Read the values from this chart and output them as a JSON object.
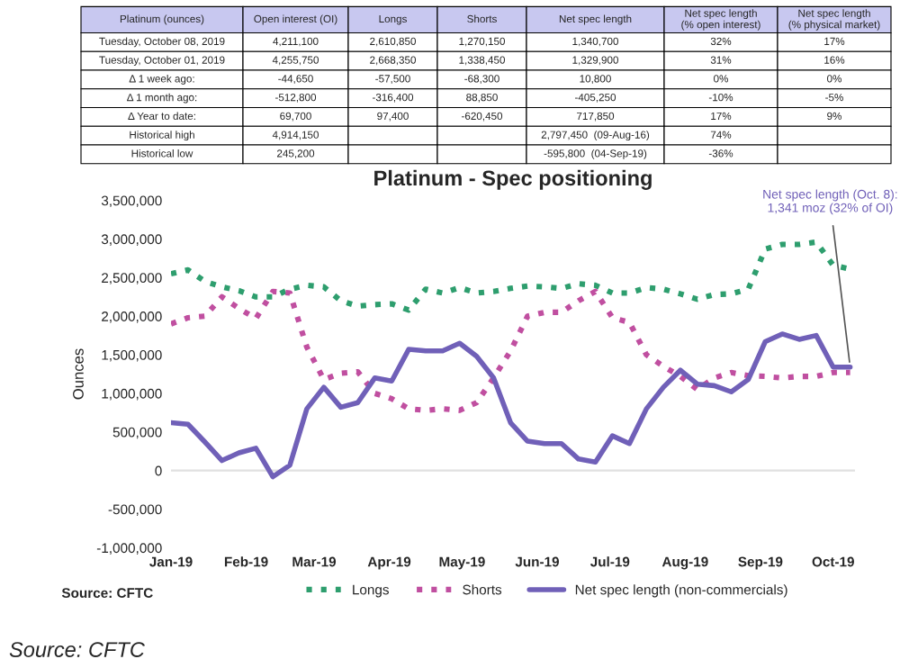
{
  "chart_data": [
    {
      "type": "other",
      "categories": [
        "Platinum (ounces)",
        "Open interest (OI)",
        "Longs",
        "Shorts",
        "Net spec length",
        "Net spec length\n(% open interest)",
        "Net spec length\n(% physical market)"
      ],
      "cell_labels": [
        [
          "Tuesday, October 08, 2019",
          "4,211,100",
          "2,610,850",
          "1,270,150",
          "1,340,700",
          "32%",
          "17%"
        ],
        [
          "Tuesday, October 01, 2019",
          "4,255,750",
          "2,668,350",
          "1,338,450",
          "1,329,900",
          "31%",
          "16%"
        ],
        [
          "Δ 1 week ago:",
          "-44,650",
          "-57,500",
          "-68,300",
          "10,800",
          "0%",
          "0%"
        ],
        [
          "Δ 1 month ago:",
          "-512,800",
          "-316,400",
          "88,850",
          "-405,250",
          "-10%",
          "-5%"
        ],
        [
          "Δ Year to date:",
          "69,700",
          "97,400",
          "-620,450",
          "717,850",
          "17%",
          "9%"
        ],
        [
          "Historical high",
          "4,914,150",
          null,
          null,
          "2,797,450  (09-Aug-16)",
          "74%",
          null
        ],
        [
          "Historical low",
          "245,200",
          null,
          null,
          "-595,800  (04-Sep-19)",
          "-36%",
          null
        ]
      ]
    },
    {
      "type": "line",
      "title": "Platinum - Spec positioning",
      "ylabel": "Ounces",
      "x": [
        "2019-01-01",
        "2019-01-08",
        "2019-01-15",
        "2019-01-22",
        "2019-01-29",
        "2019-02-05",
        "2019-02-12",
        "2019-02-19",
        "2019-02-26",
        "2019-03-05",
        "2019-03-12",
        "2019-03-19",
        "2019-03-26",
        "2019-04-02",
        "2019-04-09",
        "2019-04-16",
        "2019-04-23",
        "2019-04-30",
        "2019-05-07",
        "2019-05-14",
        "2019-05-21",
        "2019-05-28",
        "2019-06-04",
        "2019-06-11",
        "2019-06-18",
        "2019-06-25",
        "2019-07-02",
        "2019-07-09",
        "2019-07-16",
        "2019-07-23",
        "2019-07-30",
        "2019-08-06",
        "2019-08-13",
        "2019-08-20",
        "2019-08-27",
        "2019-09-03",
        "2019-09-10",
        "2019-09-17",
        "2019-09-24",
        "2019-10-01",
        "2019-10-08"
      ],
      "series": [
        {
          "name": "Longs",
          "color": "#2e9e6e",
          "line_style": "dotted",
          "values": [
            2550000,
            2600000,
            2450000,
            2380000,
            2330000,
            2250000,
            2250000,
            2350000,
            2400000,
            2380000,
            2200000,
            2130000,
            2150000,
            2160000,
            2080000,
            2350000,
            2300000,
            2370000,
            2300000,
            2320000,
            2360000,
            2390000,
            2380000,
            2360000,
            2420000,
            2400000,
            2300000,
            2300000,
            2370000,
            2350000,
            2290000,
            2220000,
            2280000,
            2290000,
            2350000,
            2870000,
            2930000,
            2930000,
            2960000,
            2660000,
            2610000
          ]
        },
        {
          "name": "Shorts",
          "color": "#c04fa0",
          "line_style": "dotted",
          "values": [
            1900000,
            1980000,
            2000000,
            2250000,
            2100000,
            1970000,
            2320000,
            2300000,
            1600000,
            1180000,
            1260000,
            1280000,
            1000000,
            930000,
            800000,
            780000,
            800000,
            780000,
            880000,
            1200000,
            1550000,
            2000000,
            2050000,
            2050000,
            2200000,
            2320000,
            1980000,
            1920000,
            1500000,
            1350000,
            1220000,
            1050000,
            1200000,
            1270000,
            1230000,
            1220000,
            1200000,
            1220000,
            1220000,
            1270000,
            1270000
          ]
        },
        {
          "name": "Net spec length (non-commercials)",
          "color": "#7060b8",
          "line_style": "solid",
          "values": [
            620000,
            600000,
            370000,
            130000,
            230000,
            290000,
            -80000,
            70000,
            800000,
            1080000,
            820000,
            880000,
            1200000,
            1160000,
            1570000,
            1550000,
            1550000,
            1650000,
            1480000,
            1200000,
            620000,
            380000,
            350000,
            350000,
            150000,
            110000,
            450000,
            350000,
            800000,
            1080000,
            1300000,
            1120000,
            1100000,
            1020000,
            1180000,
            1670000,
            1770000,
            1700000,
            1750000,
            1340000,
            1340000
          ]
        }
      ],
      "xlim": [
        "2019-01-01",
        "2019-10-10"
      ],
      "xticks": [
        {
          "value": "2019-01-01",
          "label": "Jan-19"
        },
        {
          "value": "2019-02-01",
          "label": "Feb-19"
        },
        {
          "value": "2019-03-01",
          "label": "Mar-19"
        },
        {
          "value": "2019-04-01",
          "label": "Apr-19"
        },
        {
          "value": "2019-05-01",
          "label": "May-19"
        },
        {
          "value": "2019-06-01",
          "label": "Jun-19"
        },
        {
          "value": "2019-07-01",
          "label": "Jul-19"
        },
        {
          "value": "2019-08-01",
          "label": "Aug-19"
        },
        {
          "value": "2019-09-01",
          "label": "Sep-19"
        },
        {
          "value": "2019-10-01",
          "label": "Oct-19"
        }
      ],
      "ylim": [
        -1000000,
        3500000
      ],
      "yticks": [
        {
          "value": -1000000,
          "label": "-1,000,000"
        },
        {
          "value": -500000,
          "label": "-500,000"
        },
        {
          "value": 0,
          "label": "0"
        },
        {
          "value": 500000,
          "label": "500,000"
        },
        {
          "value": 1000000,
          "label": "1,000,000"
        },
        {
          "value": 1500000,
          "label": "1,500,000"
        },
        {
          "value": 2000000,
          "label": "2,000,000"
        },
        {
          "value": 2500000,
          "label": "2,500,000"
        },
        {
          "value": 3000000,
          "label": "3,000,000"
        },
        {
          "value": 3500000,
          "label": "3,500,000"
        }
      ],
      "ref_lines": [
        {
          "axis": "y",
          "value": 0,
          "color": "#e0e0e0"
        }
      ],
      "legend": "bottom",
      "grid": false,
      "annotations": [
        {
          "text": "Net spec length (Oct. 8):\n1,341 moz (32% of OI)",
          "x": "2019-10-08",
          "y": 1341000
        },
        "Source: CFTC",
        "Source: CFTC"
      ]
    }
  ]
}
